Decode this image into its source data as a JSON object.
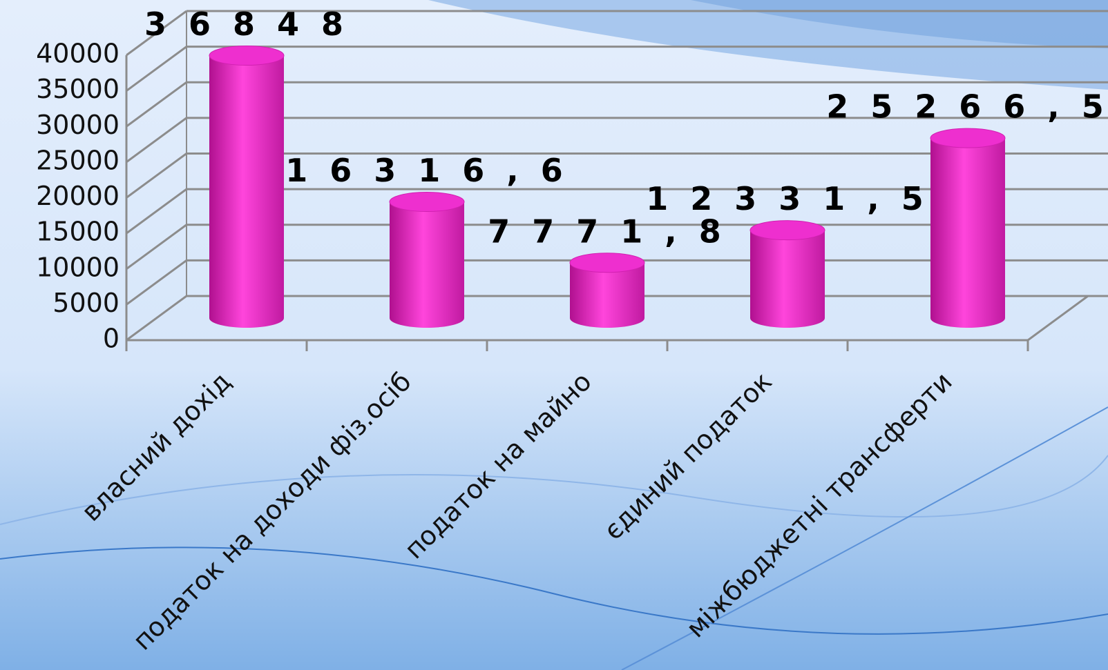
{
  "chart_data": {
    "type": "bar",
    "categories": [
      "власний дохід",
      "податок на доходи фіз.осіб",
      "податок на майно",
      "єдиний податок",
      "міжбюджетні трансферти"
    ],
    "values": [
      36848,
      16316.6,
      7771.8,
      12331.5,
      25266.5
    ],
    "value_labels": [
      "3 6 8 4 8",
      "1 6 3 1 6 , 6",
      "7 7 7 1 , 8",
      "1 2 3 3 1 , 5",
      "2 5 2 6 6 , 5"
    ],
    "color": "#ee2fcf",
    "ylim": [
      0,
      40000
    ],
    "yticks": [
      0,
      5000,
      10000,
      15000,
      20000,
      25000,
      30000,
      35000,
      40000
    ],
    "grid": true
  }
}
